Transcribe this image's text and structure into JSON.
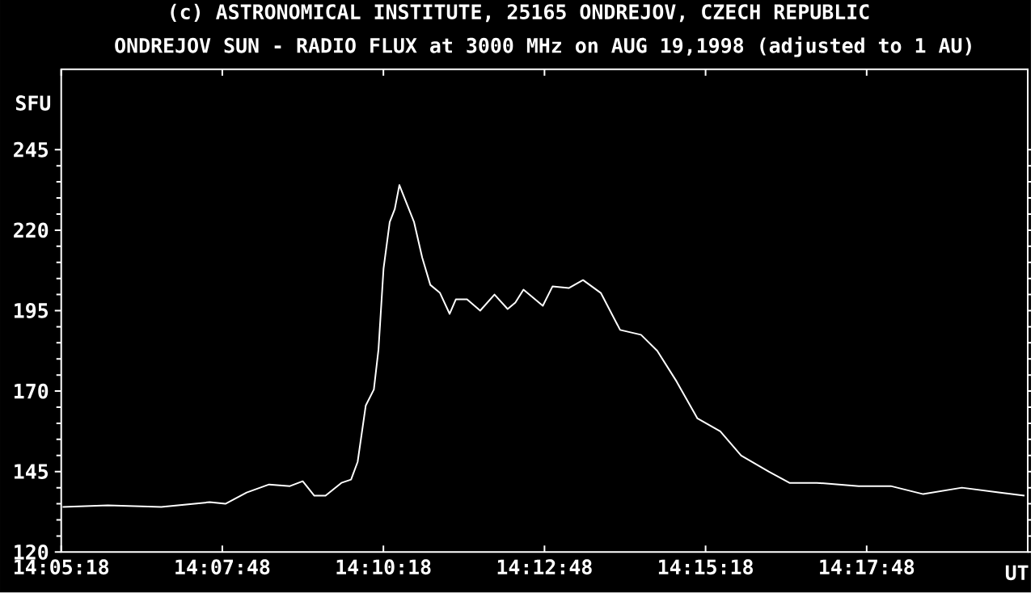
{
  "chart_data": {
    "type": "line",
    "title": "ONDREJOV SUN - RADIO FLUX at 3000 MHz on AUG 19,1998 (adjusted to 1 AU)",
    "annotations": [
      "(c) ASTRONOMICAL INSTITUTE, 25165 ONDREJOV, CZECH REPUBLIC"
    ],
    "xlabel": "UT",
    "ylabel": "SFU",
    "x": [
      14.0887,
      14.1004,
      14.1142,
      14.1267,
      14.1308,
      14.1363,
      14.1421,
      14.1475,
      14.1508,
      14.1538,
      14.1567,
      14.1608,
      14.1633,
      14.165,
      14.1671,
      14.1692,
      14.1704,
      14.1717,
      14.1733,
      14.1746,
      14.1758,
      14.1796,
      14.1817,
      14.1838,
      14.1863,
      14.1888,
      14.1904,
      14.1933,
      14.1967,
      14.2004,
      14.2038,
      14.2058,
      14.2079,
      14.2129,
      14.2154,
      14.2196,
      14.2233,
      14.2279,
      14.2329,
      14.2383,
      14.2425,
      14.2475,
      14.2529,
      14.2588,
      14.2642,
      14.2713,
      14.2767,
      14.2838,
      14.2946,
      14.3029,
      14.3113,
      14.3213,
      14.3308,
      14.3375
    ],
    "values": [
      134,
      134.5,
      134,
      135.5,
      135,
      138.5,
      141,
      140.5,
      142,
      137.5,
      137.5,
      141.5,
      142.5,
      148,
      165.5,
      170.5,
      183,
      208,
      222.5,
      226.5,
      234,
      222.5,
      211.5,
      203,
      200.5,
      194,
      198.5,
      198.5,
      195,
      200,
      195.5,
      197.5,
      201.5,
      196.5,
      202.5,
      202,
      204.5,
      200.5,
      189,
      187.5,
      182.5,
      173,
      161.5,
      157.5,
      150,
      145,
      141.5,
      141.5,
      140.5,
      140.5,
      138,
      140,
      138.5,
      137.5
    ],
    "color": "#ffffff",
    "xlim": [
      14.088333,
      14.338333
    ],
    "xticks": [
      {
        "value": 14.088333,
        "label": "14:05:18"
      },
      {
        "value": 14.13,
        "label": "14:07:48"
      },
      {
        "value": 14.171667,
        "label": "14:10:18"
      },
      {
        "value": 14.213333,
        "label": "14:12:48"
      },
      {
        "value": 14.255,
        "label": "14:15:18"
      },
      {
        "value": 14.296667,
        "label": "14:17:48"
      }
    ],
    "ylim": [
      120,
      270
    ],
    "yticks": [
      120,
      145,
      170,
      195,
      220,
      245
    ]
  }
}
